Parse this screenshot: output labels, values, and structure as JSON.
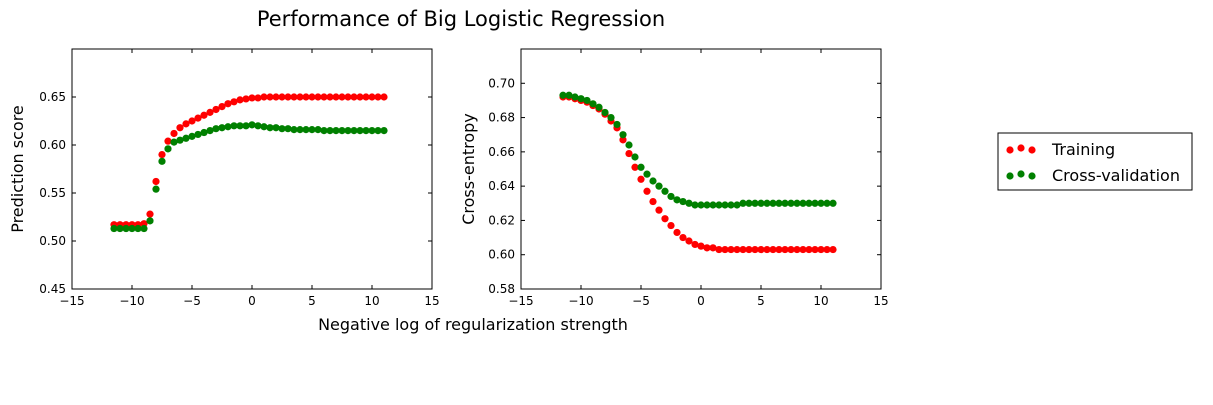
{
  "figure": {
    "title": "Performance of Big Logistic Regression",
    "shared_xlabel": "Negative log of regularization strength"
  },
  "legend": {
    "placement": "right",
    "entries": [
      {
        "label": "Training",
        "color": "#ff0000"
      },
      {
        "label": "Cross-validation",
        "color": "#008000"
      }
    ]
  },
  "chart_data": [
    {
      "type": "scatter",
      "ylabel": "Prediction score",
      "xlim": [
        -15,
        15
      ],
      "ylim": [
        0.45,
        0.7
      ],
      "xticks": [
        -15,
        -10,
        -5,
        0,
        5,
        10,
        15
      ],
      "xtick_labels": [
        "−15",
        "−10",
        "−5",
        "0",
        "5",
        "10",
        "15"
      ],
      "yticks": [
        0.45,
        0.5,
        0.55,
        0.6,
        0.65
      ],
      "ytick_labels": [
        "0.45",
        "0.50",
        "0.55",
        "0.60",
        "0.65"
      ],
      "x": [
        -11.5,
        -11,
        -10.5,
        -10,
        -9.5,
        -9,
        -8.5,
        -8,
        -7.5,
        -7,
        -6.5,
        -6,
        -5.5,
        -5,
        -4.5,
        -4,
        -3.5,
        -3,
        -2.5,
        -2,
        -1.5,
        -1,
        -0.5,
        0,
        0.5,
        1,
        1.5,
        2,
        2.5,
        3,
        3.5,
        4,
        4.5,
        5,
        5.5,
        6,
        6.5,
        7,
        7.5,
        8,
        8.5,
        9,
        9.5,
        10,
        10.5,
        11
      ],
      "series": [
        {
          "name": "Training",
          "color": "#ff0000",
          "values": [
            0.517,
            0.517,
            0.517,
            0.517,
            0.517,
            0.518,
            0.528,
            0.562,
            0.59,
            0.604,
            0.612,
            0.618,
            0.622,
            0.625,
            0.628,
            0.631,
            0.634,
            0.637,
            0.64,
            0.643,
            0.645,
            0.647,
            0.648,
            0.649,
            0.649,
            0.65,
            0.65,
            0.65,
            0.65,
            0.65,
            0.65,
            0.65,
            0.65,
            0.65,
            0.65,
            0.65,
            0.65,
            0.65,
            0.65,
            0.65,
            0.65,
            0.65,
            0.65,
            0.65,
            0.65,
            0.65
          ]
        },
        {
          "name": "Cross-validation",
          "color": "#008000",
          "values": [
            0.513,
            0.513,
            0.513,
            0.513,
            0.513,
            0.513,
            0.521,
            0.554,
            0.583,
            0.596,
            0.603,
            0.605,
            0.607,
            0.609,
            0.611,
            0.613,
            0.615,
            0.617,
            0.618,
            0.619,
            0.62,
            0.62,
            0.62,
            0.621,
            0.62,
            0.619,
            0.618,
            0.618,
            0.617,
            0.617,
            0.616,
            0.616,
            0.616,
            0.616,
            0.616,
            0.615,
            0.615,
            0.615,
            0.615,
            0.615,
            0.615,
            0.615,
            0.615,
            0.615,
            0.615,
            0.615
          ]
        }
      ]
    },
    {
      "type": "scatter",
      "ylabel": "Cross-entropy",
      "xlim": [
        -15,
        15
      ],
      "ylim": [
        0.58,
        0.72
      ],
      "xticks": [
        -15,
        -10,
        -5,
        0,
        5,
        10,
        15
      ],
      "xtick_labels": [
        "−15",
        "−10",
        "−5",
        "0",
        "5",
        "10",
        "15"
      ],
      "yticks": [
        0.58,
        0.6,
        0.62,
        0.64,
        0.66,
        0.68,
        0.7
      ],
      "ytick_labels": [
        "0.58",
        "0.60",
        "0.62",
        "0.64",
        "0.66",
        "0.68",
        "0.70"
      ],
      "x": [
        -11.5,
        -11,
        -10.5,
        -10,
        -9.5,
        -9,
        -8.5,
        -8,
        -7.5,
        -7,
        -6.5,
        -6,
        -5.5,
        -5,
        -4.5,
        -4,
        -3.5,
        -3,
        -2.5,
        -2,
        -1.5,
        -1,
        -0.5,
        0,
        0.5,
        1,
        1.5,
        2,
        2.5,
        3,
        3.5,
        4,
        4.5,
        5,
        5.5,
        6,
        6.5,
        7,
        7.5,
        8,
        8.5,
        9,
        9.5,
        10,
        10.5,
        11
      ],
      "series": [
        {
          "name": "Training",
          "color": "#ff0000",
          "values": [
            0.692,
            0.692,
            0.691,
            0.69,
            0.689,
            0.687,
            0.685,
            0.682,
            0.678,
            0.674,
            0.667,
            0.659,
            0.651,
            0.644,
            0.637,
            0.631,
            0.626,
            0.621,
            0.617,
            0.613,
            0.61,
            0.608,
            0.606,
            0.605,
            0.604,
            0.604,
            0.603,
            0.603,
            0.603,
            0.603,
            0.603,
            0.603,
            0.603,
            0.603,
            0.603,
            0.603,
            0.603,
            0.603,
            0.603,
            0.603,
            0.603,
            0.603,
            0.603,
            0.603,
            0.603,
            0.603
          ]
        },
        {
          "name": "Cross-validation",
          "color": "#008000",
          "values": [
            0.693,
            0.693,
            0.692,
            0.691,
            0.69,
            0.688,
            0.686,
            0.683,
            0.68,
            0.676,
            0.67,
            0.664,
            0.657,
            0.651,
            0.647,
            0.643,
            0.64,
            0.637,
            0.634,
            0.632,
            0.631,
            0.63,
            0.629,
            0.629,
            0.629,
            0.629,
            0.629,
            0.629,
            0.629,
            0.629,
            0.63,
            0.63,
            0.63,
            0.63,
            0.63,
            0.63,
            0.63,
            0.63,
            0.63,
            0.63,
            0.63,
            0.63,
            0.63,
            0.63,
            0.63,
            0.63
          ]
        }
      ]
    }
  ]
}
